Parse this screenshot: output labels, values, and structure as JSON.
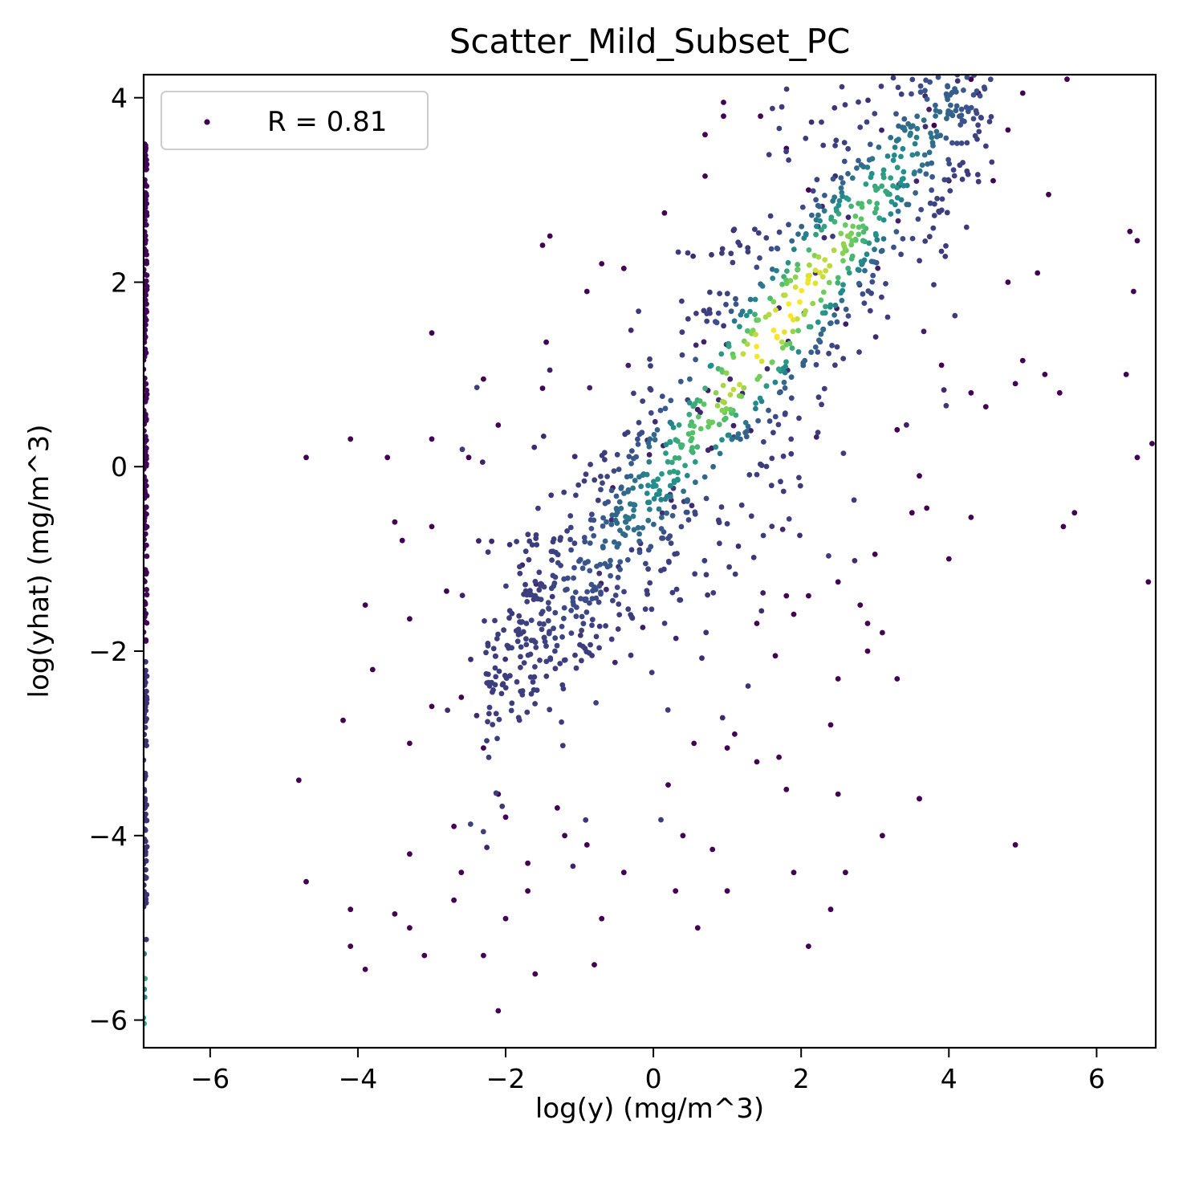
{
  "chart_data": {
    "type": "scatter",
    "title": "Scatter_Mild_Subset_PC",
    "xlabel": "log(y) (mg/m^3)",
    "ylabel": "log(yhat) (mg/m^3)",
    "xlim": [
      -6.9,
      6.8
    ],
    "ylim": [
      -6.3,
      4.25
    ],
    "xticks": [
      -6,
      -4,
      -2,
      0,
      2,
      4,
      6
    ],
    "yticks": [
      -6,
      -4,
      -2,
      0,
      2,
      4
    ],
    "xtick_labels": [
      "−6",
      "−4",
      "−2",
      "0",
      "2",
      "4",
      "6"
    ],
    "ytick_labels": [
      "−6",
      "−4",
      "−2",
      "0",
      "2",
      "4"
    ],
    "legend": {
      "label": "R = 0.81",
      "placement": "top-left"
    },
    "colormap": "viridis",
    "colormap_stops": [
      "#440154",
      "#3b528b",
      "#21918c",
      "#5ec962",
      "#fde725"
    ],
    "series": [
      {
        "name": "R = 0.81",
        "description": "points colored by local density (viridis); dense band along y = x, slope ~1",
        "points": [
          [
            -4.7,
            0.1
          ],
          [
            -4.1,
            0.3
          ],
          [
            -3.6,
            0.1
          ],
          [
            -3.0,
            1.45
          ],
          [
            -2.3,
            0.95
          ],
          [
            -2.1,
            0.45
          ],
          [
            -3.0,
            0.3
          ],
          [
            -3.4,
            -0.8
          ],
          [
            -3.9,
            -1.5
          ],
          [
            -3.8,
            -2.2
          ],
          [
            -4.2,
            -2.75
          ],
          [
            -4.8,
            -3.4
          ],
          [
            -4.7,
            -4.5
          ],
          [
            -4.1,
            -4.8
          ],
          [
            -4.1,
            -5.2
          ],
          [
            -3.9,
            -5.45
          ],
          [
            -3.5,
            -4.85
          ],
          [
            -3.3,
            -5.0
          ],
          [
            -3.1,
            -5.3
          ],
          [
            -2.3,
            -5.3
          ],
          [
            -2.1,
            -5.9
          ],
          [
            -1.6,
            -5.5
          ],
          [
            -0.8,
            -5.4
          ],
          [
            0.6,
            -5.0
          ],
          [
            2.1,
            -5.2
          ],
          [
            2.4,
            -4.8
          ],
          [
            2.6,
            -4.4
          ],
          [
            3.1,
            -4.0
          ],
          [
            3.6,
            -3.6
          ],
          [
            4.9,
            -4.1
          ],
          [
            1.9,
            -4.4
          ],
          [
            1.0,
            -4.6
          ],
          [
            0.3,
            -4.6
          ],
          [
            -0.7,
            -4.9
          ],
          [
            -1.7,
            -4.6
          ],
          [
            -2.0,
            -4.9
          ],
          [
            -2.7,
            -4.7
          ],
          [
            -3.3,
            -4.2
          ],
          [
            -2.6,
            -4.4
          ],
          [
            -1.2,
            -4.0
          ],
          [
            0.4,
            -4.0
          ],
          [
            0.8,
            -4.15
          ],
          [
            1.8,
            -3.5
          ],
          [
            2.4,
            -2.8
          ],
          [
            2.5,
            -2.3
          ],
          [
            2.9,
            -2.0
          ],
          [
            3.1,
            -1.8
          ],
          [
            3.3,
            -2.3
          ],
          [
            2.8,
            -1.5
          ],
          [
            2.9,
            -1.7
          ],
          [
            2.5,
            -1.25
          ],
          [
            3.0,
            -0.95
          ],
          [
            3.5,
            -0.5
          ],
          [
            4.0,
            -1.0
          ],
          [
            4.3,
            -0.55
          ],
          [
            3.6,
            -0.1
          ],
          [
            3.7,
            -0.45
          ],
          [
            4.5,
            0.65
          ],
          [
            4.3,
            0.8
          ],
          [
            4.9,
            0.9
          ],
          [
            5.0,
            1.15
          ],
          [
            5.3,
            1.0
          ],
          [
            5.5,
            0.8
          ],
          [
            6.4,
            1.0
          ],
          [
            6.55,
            0.1
          ],
          [
            6.75,
            0.25
          ],
          [
            6.7,
            -1.25
          ],
          [
            5.7,
            -0.5
          ],
          [
            5.55,
            -0.65
          ],
          [
            6.5,
            1.9
          ],
          [
            6.55,
            2.45
          ],
          [
            6.45,
            2.55
          ],
          [
            4.8,
            2.0
          ],
          [
            5.2,
            2.1
          ],
          [
            5.35,
            2.95
          ],
          [
            5.6,
            4.2
          ],
          [
            5.0,
            4.05
          ],
          [
            4.8,
            3.65
          ],
          [
            4.6,
            3.1
          ],
          [
            4.0,
            3.1
          ],
          [
            3.8,
            3.7
          ],
          [
            4.3,
            4.2
          ],
          [
            4.4,
            4.05
          ],
          [
            3.9,
            1.1
          ],
          [
            3.3,
            0.4
          ],
          [
            2.1,
            3.0
          ],
          [
            1.8,
            3.45
          ],
          [
            1.45,
            3.8
          ],
          [
            0.95,
            3.8
          ],
          [
            0.95,
            3.95
          ],
          [
            0.7,
            3.6
          ],
          [
            0.7,
            3.15
          ],
          [
            0.15,
            2.75
          ],
          [
            -0.4,
            2.15
          ],
          [
            -0.7,
            2.2
          ],
          [
            -0.9,
            1.9
          ],
          [
            -1.4,
            2.5
          ],
          [
            -1.5,
            2.4
          ],
          [
            -1.45,
            1.35
          ],
          [
            -1.5,
            0.85
          ],
          [
            -2.5,
            0.1
          ],
          [
            -3.0,
            -0.65
          ],
          [
            -3.5,
            -0.6
          ],
          [
            -3.3,
            -1.65
          ],
          [
            -2.8,
            -1.35
          ],
          [
            -2.6,
            -2.5
          ],
          [
            -2.3,
            -3.05
          ],
          [
            -2.1,
            -3.55
          ],
          [
            -2.7,
            -3.9
          ],
          [
            -3.3,
            -3.0
          ],
          [
            -3.0,
            -2.6
          ],
          [
            -2.0,
            -3.8
          ],
          [
            -1.7,
            -4.3
          ],
          [
            -1.3,
            -3.7
          ],
          [
            -0.9,
            -4.1
          ],
          [
            -0.4,
            -4.4
          ],
          [
            0.2,
            -3.45
          ],
          [
            0.55,
            -3.0
          ],
          [
            1.0,
            -3.05
          ],
          [
            1.1,
            -2.9
          ],
          [
            1.4,
            -3.2
          ],
          [
            1.7,
            -3.15
          ],
          [
            1.65,
            -2.05
          ],
          [
            1.4,
            -1.7
          ],
          [
            1.8,
            -1.4
          ],
          [
            2.1,
            -1.4
          ],
          [
            1.9,
            -1.6
          ],
          [
            2.5,
            -3.55
          ],
          [
            3.6,
            -3.6
          ]
        ],
        "dense_band": {
          "slope": 1.0,
          "intercept": -0.15,
          "x_range": [
            -2.3,
            4.6
          ],
          "spread": 0.6
        },
        "clip_column": {
          "x": -6.88,
          "y_range": [
            -6.3,
            3.5
          ]
        }
      }
    ]
  }
}
